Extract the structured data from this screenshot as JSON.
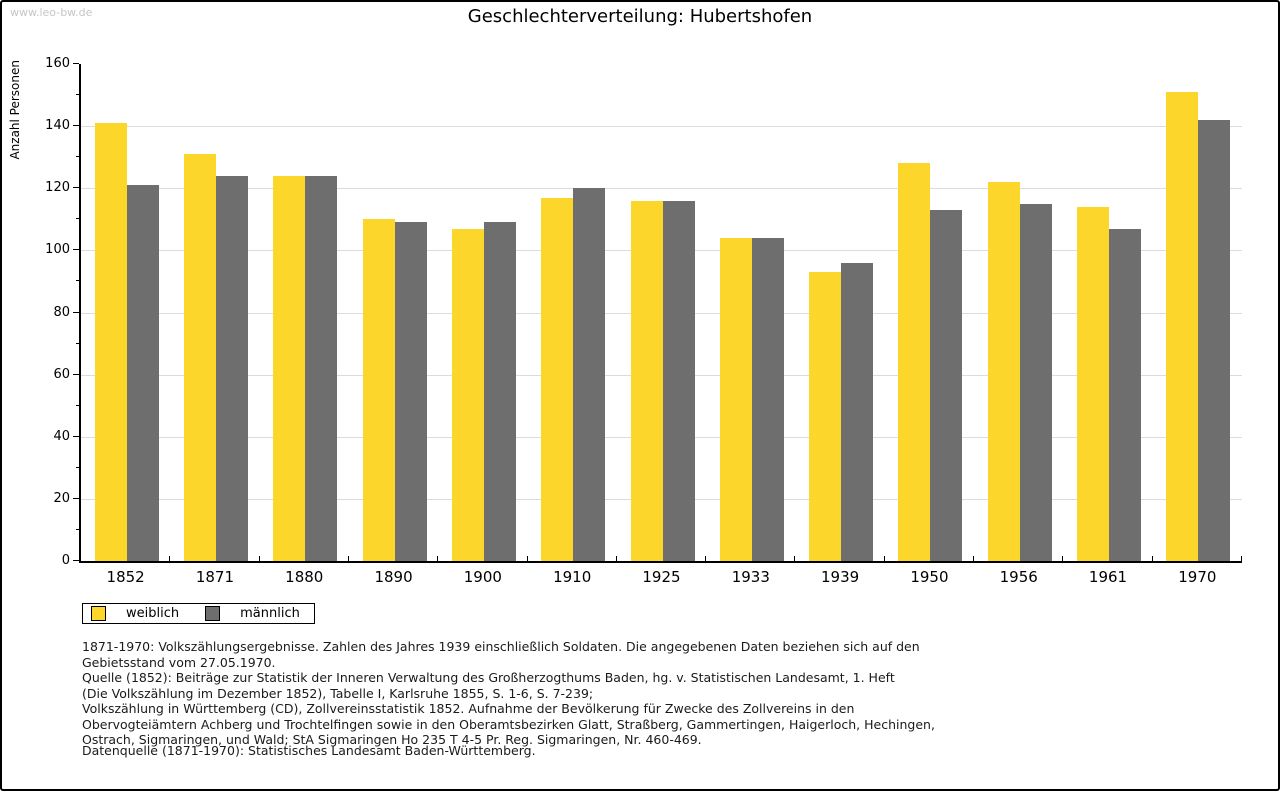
{
  "watermark": "www.leo-bw.de",
  "title": "Geschlechterverteilung: Hubertshofen",
  "chart_data": {
    "type": "bar",
    "title": "Geschlechterverteilung: Hubertshofen",
    "xlabel": "",
    "ylabel": "Anzahl Personen",
    "ylim": [
      0,
      160
    ],
    "ytick_step": 20,
    "ytick_minor_step": 10,
    "grid": true,
    "legend_position": "bottom-left",
    "categories": [
      "1852",
      "1871",
      "1880",
      "1890",
      "1900",
      "1910",
      "1925",
      "1933",
      "1939",
      "1950",
      "1956",
      "1961",
      "1970"
    ],
    "series": [
      {
        "name": "weiblich",
        "color": "#FDD62C",
        "values": [
          141,
          131,
          124,
          110,
          107,
          117,
          116,
          104,
          93,
          128,
          122,
          114,
          151
        ]
      },
      {
        "name": "männlich",
        "color": "#6E6E6E",
        "values": [
          121,
          124,
          124,
          109,
          109,
          120,
          116,
          104,
          96,
          113,
          115,
          107,
          142
        ]
      }
    ]
  },
  "legend": {
    "items": [
      {
        "label": "weiblich",
        "color": "#FDD62C"
      },
      {
        "label": "männlich",
        "color": "#6E6E6E"
      }
    ]
  },
  "footnotes": {
    "lines": [
      "1871-1970: Volkszählungsergebnisse. Zahlen des Jahres 1939 einschließlich Soldaten. Die angegebenen Daten beziehen sich auf den",
      "Gebietsstand vom 27.05.1970.",
      "Quelle (1852): Beiträge zur Statistik der Inneren Verwaltung des Großherzogthums Baden, hg. v. Statistischen Landesamt, 1. Heft",
      "(Die Volkszählung im Dezember 1852), Tabelle I, Karlsruhe 1855, S. 1-6, S. 7-239;",
      "Volkszählung in Württemberg (CD), Zollvereinsstatistik 1852. Aufnahme der Bevölkerung für Zwecke des Zollvereins in den",
      "Obervogteiämtern Achberg und Trochtelfingen sowie in den Oberamtsbezirken Glatt, Straßberg, Gammertingen, Haigerloch, Hechingen,",
      "Ostrach, Sigmaringen, und Wald; StA Sigmaringen Ho 235 T 4-5 Pr. Reg. Sigmaringen, Nr. 460-469."
    ],
    "source_line": "Datenquelle (1871-1970): Statistisches Landesamt Baden-Württemberg."
  }
}
